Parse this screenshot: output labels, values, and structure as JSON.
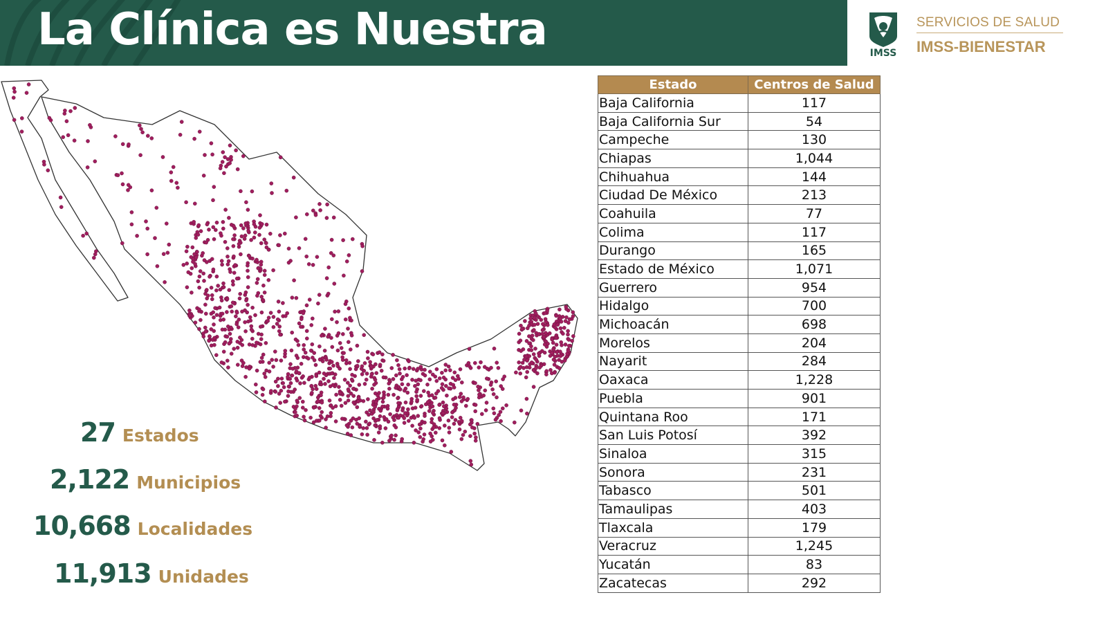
{
  "header": {
    "title": "La Clínica es Nuestra",
    "background_color": "#245a4a"
  },
  "logo": {
    "icon": "imss-eagle-emblem-icon",
    "icon_text": "IMSS",
    "line1": "SERVICIOS DE SALUD",
    "line2": "IMSS-BIENESTAR",
    "color": "#b8955a"
  },
  "map": {
    "subject": "Mexico",
    "point_color": "#a01e5e",
    "outline_color": "#333333"
  },
  "stats": [
    {
      "value": "27",
      "label": "Estados"
    },
    {
      "value": "2,122",
      "label": "Municipios"
    },
    {
      "value": "10,668",
      "label": "Localidades"
    },
    {
      "value": "11,913",
      "label": "Unidades"
    }
  ],
  "table": {
    "headers": [
      "Estado",
      "Centros de Salud"
    ],
    "rows": [
      {
        "estado": "Baja California",
        "centros": "117"
      },
      {
        "estado": "Baja California Sur",
        "centros": "54"
      },
      {
        "estado": "Campeche",
        "centros": "130"
      },
      {
        "estado": "Chiapas",
        "centros": "1,044"
      },
      {
        "estado": "Chihuahua",
        "centros": "144"
      },
      {
        "estado": "Ciudad De México",
        "centros": "213"
      },
      {
        "estado": "Coahuila",
        "centros": "77"
      },
      {
        "estado": "Colima",
        "centros": "117"
      },
      {
        "estado": "Durango",
        "centros": "165"
      },
      {
        "estado": "Estado de México",
        "centros": "1,071"
      },
      {
        "estado": "Guerrero",
        "centros": "954"
      },
      {
        "estado": "Hidalgo",
        "centros": "700"
      },
      {
        "estado": "Michoacán",
        "centros": "698"
      },
      {
        "estado": "Morelos",
        "centros": "204"
      },
      {
        "estado": "Nayarit",
        "centros": "284"
      },
      {
        "estado": "Oaxaca",
        "centros": "1,228"
      },
      {
        "estado": "Puebla",
        "centros": "901"
      },
      {
        "estado": "Quintana Roo",
        "centros": "171"
      },
      {
        "estado": "San Luis Potosí",
        "centros": "392"
      },
      {
        "estado": "Sinaloa",
        "centros": "315"
      },
      {
        "estado": "Sonora",
        "centros": "231"
      },
      {
        "estado": "Tabasco",
        "centros": "501"
      },
      {
        "estado": "Tamaulipas",
        "centros": "403"
      },
      {
        "estado": "Tlaxcala",
        "centros": "179"
      },
      {
        "estado": "Veracruz",
        "centros": "1,245"
      },
      {
        "estado": "Yucatán",
        "centros": "83"
      },
      {
        "estado": "Zacatecas",
        "centros": "292"
      }
    ],
    "header_color": "#b48a50"
  }
}
